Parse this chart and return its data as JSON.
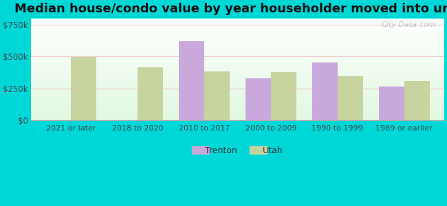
{
  "title": "Median house/condo value by year householder moved into unit",
  "categories": [
    "2021 or later",
    "2018 to 2020",
    "2010 to 2017",
    "2000 to 2009",
    "1990 to 1999",
    "1989 or earlier"
  ],
  "trenton_values": [
    null,
    null,
    620000,
    330000,
    455000,
    265000
  ],
  "utah_values": [
    495000,
    415000,
    385000,
    375000,
    345000,
    305000
  ],
  "trenton_color": "#c9a8dc",
  "utah_color": "#c8d4a0",
  "background_outer": "#00d8d8",
  "title_fontsize": 13,
  "ylabel_ticks": [
    "$0",
    "$250k",
    "$500k",
    "$750k"
  ],
  "ytick_values": [
    0,
    250000,
    500000,
    750000
  ],
  "ylim": [
    0,
    800000
  ],
  "bar_width": 0.38,
  "watermark_text": "City-Data.com"
}
